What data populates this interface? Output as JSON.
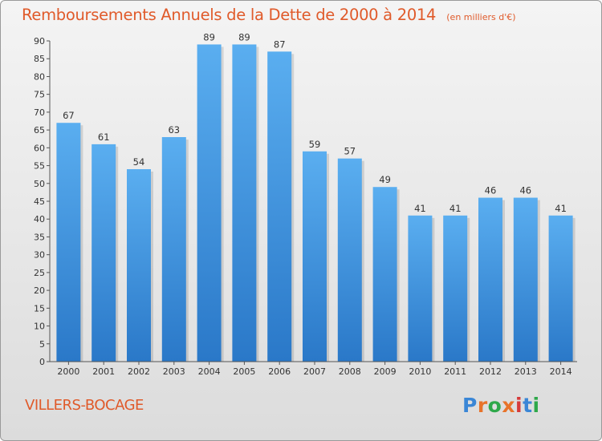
{
  "header": {
    "title": "Remboursements Annuels de la Dette de 2000 à 2014",
    "subtitle": "(en milliers d'€)"
  },
  "footer": {
    "commune": "VILLERS-BOCAGE",
    "logo": "Proxiti"
  },
  "colors": {
    "title": "#e05a2a",
    "bar_top": "#5aaef0",
    "bar_bottom": "#2a78c8",
    "logo": [
      "#3a86d6",
      "#e8732a",
      "#2ea84a",
      "#e8732a",
      "#d63a3a",
      "#3a86d6",
      "#2ea84a"
    ]
  },
  "chart_data": {
    "type": "bar",
    "categories": [
      "2000",
      "2001",
      "2002",
      "2003",
      "2004",
      "2005",
      "2006",
      "2007",
      "2008",
      "2009",
      "2010",
      "2011",
      "2012",
      "2013",
      "2014"
    ],
    "values": [
      67,
      61,
      54,
      63,
      89,
      89,
      87,
      59,
      57,
      49,
      41,
      41,
      46,
      46,
      41
    ],
    "ylim": [
      0,
      90
    ],
    "ytick_step": 5,
    "grid": false,
    "legend": "none"
  }
}
